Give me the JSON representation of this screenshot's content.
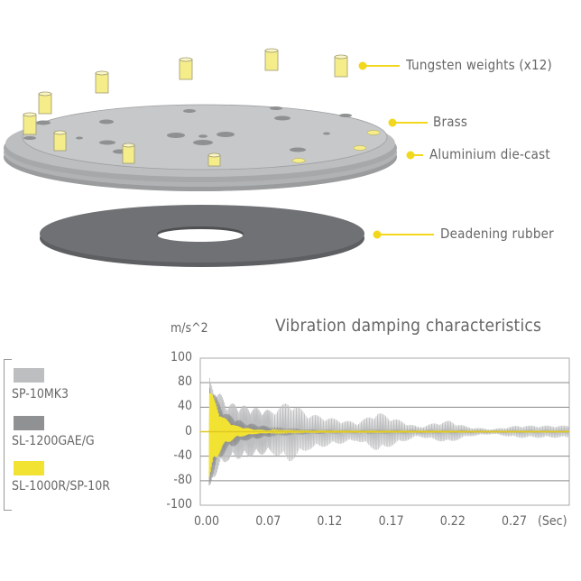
{
  "diagram": {
    "labels": [
      "Tungsten weights (x12)",
      "Brass",
      "Aluminium die-cast",
      "Deadening rubber"
    ],
    "colors": {
      "weight": "#f5ec8a",
      "brass_top": "#c4c6c8",
      "die_cast": "#a9abad",
      "rubber": "#6f7073",
      "leader": "#f2d81c"
    }
  },
  "chart_data": {
    "type": "line",
    "title": "Vibration damping characteristics",
    "ylabel": "m/s^2",
    "xlabel": "(Sec)",
    "y_ticks": [
      "100",
      "80",
      "40",
      "0",
      "-40",
      "-80",
      "-100"
    ],
    "x_ticks": [
      "0.00",
      "0.07",
      "0.12",
      "0.17",
      "0.22",
      "0.27"
    ],
    "ylim": [
      -100,
      100
    ],
    "grid": true,
    "legend_position": "left",
    "series": [
      {
        "name": "SP-10MK3",
        "color": "#bdbebf",
        "envelope": {
          "x": [
            0.0,
            0.02,
            0.05,
            0.07,
            0.085,
            0.1,
            0.12,
            0.14,
            0.157,
            0.17,
            0.19,
            0.205,
            0.215,
            0.23,
            0.25,
            0.27,
            0.3
          ],
          "amplitude": [
            85,
            48,
            40,
            35,
            50,
            30,
            22,
            15,
            32,
            22,
            8,
            15,
            18,
            8,
            4,
            10,
            10
          ]
        }
      },
      {
        "name": "SL-1200GAE/G",
        "color": "#909193",
        "envelope": {
          "x": [
            0.0,
            0.01,
            0.02,
            0.04,
            0.07,
            0.1,
            0.12,
            0.17,
            0.3
          ],
          "amplitude": [
            88,
            50,
            30,
            15,
            8,
            4,
            3,
            2,
            1
          ]
        }
      },
      {
        "name": "SL-1000R/SP-10R",
        "color": "#f2e231",
        "envelope": {
          "x": [
            0.0,
            0.005,
            0.015,
            0.03,
            0.05,
            0.07,
            0.1,
            0.3
          ],
          "amplitude": [
            75,
            55,
            25,
            10,
            4,
            2,
            1,
            0.5
          ]
        }
      }
    ]
  }
}
